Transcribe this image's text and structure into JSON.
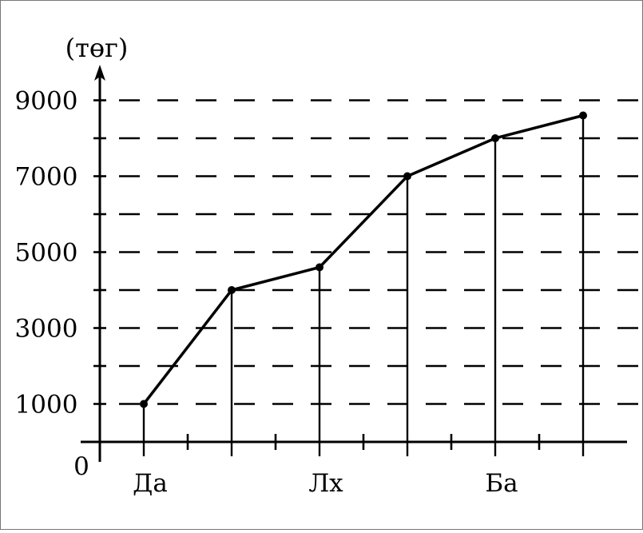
{
  "chart_data": {
    "type": "line",
    "ylabel": "(төг)",
    "origin_label": "0",
    "ylim": [
      0,
      9500
    ],
    "xlim": [
      0.5,
      6.5
    ],
    "y_tick_labels": [
      {
        "value": 1000,
        "label": "1000"
      },
      {
        "value": 3000,
        "label": "3000"
      },
      {
        "value": 5000,
        "label": "5000"
      },
      {
        "value": 7000,
        "label": "7000"
      },
      {
        "value": 9000,
        "label": "9000"
      }
    ],
    "gridlines": [
      1000,
      2000,
      3000,
      4000,
      5000,
      6000,
      7000,
      8000,
      9000
    ],
    "grid_style": "dashed",
    "minor_x_ticks": [
      1.5,
      2.5,
      3.5,
      4.5,
      5.5
    ],
    "x_category_labels": [
      {
        "x": 1,
        "label": "Да"
      },
      {
        "x": 3,
        "label": "Лх"
      },
      {
        "x": 5,
        "label": "Ба"
      }
    ],
    "x": [
      1,
      2,
      3,
      4,
      5,
      6
    ],
    "values": [
      1000,
      4000,
      4600,
      7000,
      8000,
      8600
    ],
    "line_color": "#000000"
  }
}
